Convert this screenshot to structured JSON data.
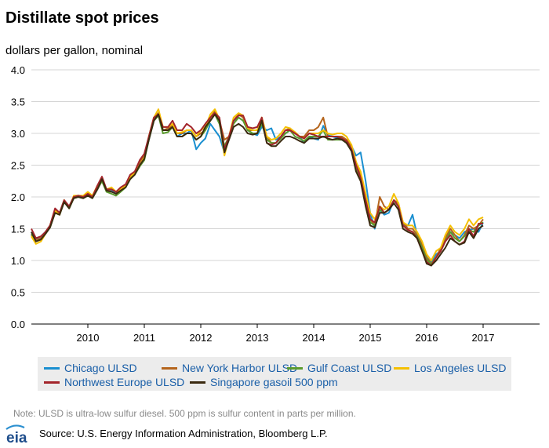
{
  "header": {
    "title": "Distillate spot prices",
    "unit_label": "dollars per gallon, nominal"
  },
  "footer": {
    "note": "Note: ULSD is ultra-low sulfur diesel. 500 ppm is sulfur content in parts per million.",
    "source": "Source: U.S. Energy Information Administration, Bloomberg L.P.",
    "logo_text": "eia"
  },
  "chart_data": {
    "type": "line",
    "title": "Distillate spot prices",
    "ylabel": "dollars per gallon, nominal",
    "xlabel": "",
    "xlim": [
      2009.0,
      2018.0
    ],
    "ylim": [
      0,
      4.0
    ],
    "x_ticks": [
      "2010",
      "2011",
      "2012",
      "2013",
      "2014",
      "2015",
      "2016",
      "2017"
    ],
    "y_ticks": [
      "0.0",
      "0.5",
      "1.0",
      "1.5",
      "2.0",
      "2.5",
      "3.0",
      "3.5",
      "4.0"
    ],
    "grid": "horizontal",
    "legend_position": "bottom",
    "x": [
      2009.0,
      2009.08,
      2009.17,
      2009.25,
      2009.33,
      2009.42,
      2009.5,
      2009.58,
      2009.67,
      2009.75,
      2009.83,
      2009.92,
      2010.0,
      2010.08,
      2010.17,
      2010.25,
      2010.33,
      2010.42,
      2010.5,
      2010.58,
      2010.67,
      2010.75,
      2010.83,
      2010.92,
      2011.0,
      2011.08,
      2011.17,
      2011.25,
      2011.33,
      2011.42,
      2011.5,
      2011.58,
      2011.67,
      2011.75,
      2011.83,
      2011.92,
      2012.0,
      2012.08,
      2012.17,
      2012.25,
      2012.33,
      2012.42,
      2012.5,
      2012.58,
      2012.67,
      2012.75,
      2012.83,
      2012.92,
      2013.0,
      2013.08,
      2013.17,
      2013.25,
      2013.33,
      2013.42,
      2013.5,
      2013.58,
      2013.67,
      2013.75,
      2013.83,
      2013.92,
      2014.0,
      2014.08,
      2014.17,
      2014.25,
      2014.33,
      2014.42,
      2014.5,
      2014.58,
      2014.67,
      2014.75,
      2014.83,
      2014.92,
      2015.0,
      2015.08,
      2015.17,
      2015.25,
      2015.33,
      2015.42,
      2015.5,
      2015.58,
      2015.67,
      2015.75,
      2015.83,
      2015.92,
      2016.0,
      2016.08,
      2016.17,
      2016.25,
      2016.33,
      2016.42,
      2016.5,
      2016.58,
      2016.67,
      2016.75,
      2016.83,
      2016.92,
      2017.0
    ],
    "series": [
      {
        "name": "Chicago ULSD",
        "color": "#1a8fd0",
        "values": [
          1.45,
          1.33,
          1.38,
          1.45,
          1.55,
          1.8,
          1.75,
          1.95,
          1.85,
          2.0,
          2.02,
          2.0,
          2.05,
          2.0,
          2.15,
          2.3,
          2.1,
          2.1,
          2.05,
          2.1,
          2.15,
          2.3,
          2.38,
          2.5,
          2.6,
          2.9,
          3.2,
          3.3,
          3.05,
          3.05,
          3.1,
          2.95,
          3.0,
          3.0,
          3.05,
          2.75,
          2.85,
          2.92,
          3.15,
          3.05,
          2.95,
          2.7,
          2.95,
          3.2,
          3.25,
          3.2,
          3.05,
          3.0,
          2.97,
          3.1,
          3.05,
          3.08,
          2.9,
          2.95,
          3.0,
          3.05,
          3.0,
          2.95,
          2.85,
          2.95,
          2.92,
          2.9,
          3.12,
          2.97,
          2.95,
          2.93,
          2.93,
          2.9,
          2.8,
          2.65,
          2.7,
          2.25,
          1.75,
          1.5,
          1.8,
          1.72,
          1.75,
          1.95,
          1.85,
          1.55,
          1.55,
          1.72,
          1.4,
          1.25,
          1.05,
          0.98,
          1.1,
          1.15,
          1.35,
          1.45,
          1.4,
          1.35,
          1.45,
          1.48,
          1.5,
          1.45,
          1.6
        ]
      },
      {
        "name": "New York Harbor ULSD",
        "color": "#b5651d",
        "values": [
          1.4,
          1.32,
          1.35,
          1.45,
          1.55,
          1.8,
          1.75,
          1.95,
          1.85,
          2.0,
          2.02,
          2.0,
          2.05,
          2.0,
          2.15,
          2.3,
          2.1,
          2.12,
          2.08,
          2.12,
          2.18,
          2.32,
          2.38,
          2.55,
          2.65,
          2.95,
          3.25,
          3.32,
          3.05,
          3.08,
          3.12,
          3.0,
          3.0,
          3.05,
          3.05,
          2.95,
          3.0,
          3.05,
          3.25,
          3.35,
          3.2,
          2.9,
          2.95,
          3.2,
          3.3,
          3.25,
          3.05,
          3.05,
          3.05,
          3.25,
          2.95,
          2.85,
          2.85,
          2.95,
          3.05,
          3.08,
          3.0,
          2.95,
          2.95,
          3.05,
          3.05,
          3.1,
          3.25,
          2.95,
          2.95,
          2.95,
          2.95,
          2.9,
          2.8,
          2.55,
          2.35,
          2.0,
          1.65,
          1.55,
          2.0,
          1.85,
          1.8,
          1.95,
          1.9,
          1.6,
          1.5,
          1.5,
          1.4,
          1.25,
          1.05,
          0.95,
          1.05,
          1.2,
          1.35,
          1.5,
          1.4,
          1.3,
          1.4,
          1.55,
          1.5,
          1.55,
          1.65
        ]
      },
      {
        "name": "Gulf Coast ULSD",
        "color": "#5a9b2d",
        "values": [
          1.42,
          1.3,
          1.33,
          1.42,
          1.52,
          1.75,
          1.72,
          1.92,
          1.82,
          1.98,
          2.0,
          1.98,
          2.02,
          1.98,
          2.12,
          2.25,
          2.08,
          2.05,
          2.02,
          2.08,
          2.15,
          2.28,
          2.35,
          2.48,
          2.58,
          2.9,
          3.2,
          3.28,
          3.0,
          3.02,
          3.1,
          2.95,
          2.95,
          3.0,
          3.0,
          2.9,
          2.95,
          3.05,
          3.2,
          3.3,
          3.15,
          2.8,
          2.95,
          3.15,
          3.25,
          3.2,
          3.05,
          3.0,
          3.0,
          3.15,
          2.9,
          2.85,
          2.85,
          2.92,
          3.0,
          3.05,
          2.95,
          2.92,
          2.88,
          2.95,
          2.95,
          2.95,
          3.05,
          2.9,
          2.9,
          2.9,
          2.9,
          2.85,
          2.75,
          2.45,
          2.3,
          1.9,
          1.6,
          1.55,
          1.8,
          1.75,
          1.8,
          1.95,
          1.85,
          1.55,
          1.48,
          1.45,
          1.38,
          1.2,
          1.02,
          0.94,
          1.05,
          1.15,
          1.3,
          1.45,
          1.35,
          1.3,
          1.38,
          1.48,
          1.45,
          1.55,
          1.6
        ]
      },
      {
        "name": "Los Angeles ULSD",
        "color": "#f5c000",
        "values": [
          1.38,
          1.26,
          1.3,
          1.42,
          1.55,
          1.78,
          1.72,
          1.95,
          1.82,
          2.02,
          2.02,
          2.02,
          2.08,
          2.02,
          2.18,
          2.28,
          2.12,
          2.15,
          2.08,
          2.12,
          2.18,
          2.32,
          2.38,
          2.5,
          2.62,
          2.95,
          3.25,
          3.38,
          3.1,
          3.1,
          3.15,
          3.0,
          3.02,
          3.05,
          3.05,
          2.95,
          3.05,
          3.1,
          3.3,
          3.38,
          3.22,
          2.65,
          2.95,
          3.25,
          3.32,
          3.28,
          3.08,
          3.05,
          3.05,
          3.25,
          2.95,
          2.9,
          2.92,
          3.0,
          3.1,
          3.08,
          3.02,
          2.95,
          2.92,
          3.0,
          3.0,
          3.0,
          3.05,
          3.0,
          2.98,
          3.0,
          3.0,
          2.95,
          2.82,
          2.55,
          2.4,
          2.05,
          1.75,
          1.65,
          1.85,
          1.8,
          1.85,
          2.05,
          1.9,
          1.6,
          1.55,
          1.55,
          1.45,
          1.3,
          1.1,
          1.0,
          1.15,
          1.2,
          1.4,
          1.55,
          1.45,
          1.4,
          1.5,
          1.65,
          1.55,
          1.65,
          1.68
        ]
      },
      {
        "name": "Northwest Europe ULSD",
        "color": "#a3252b",
        "values": [
          1.5,
          1.35,
          1.38,
          1.45,
          1.55,
          1.82,
          1.75,
          1.95,
          1.85,
          2.0,
          2.02,
          2.0,
          2.05,
          2.0,
          2.18,
          2.32,
          2.12,
          2.12,
          2.08,
          2.15,
          2.2,
          2.35,
          2.4,
          2.58,
          2.68,
          2.95,
          3.25,
          3.3,
          3.1,
          3.1,
          3.2,
          3.05,
          3.05,
          3.15,
          3.1,
          3.0,
          3.05,
          3.15,
          3.25,
          3.32,
          3.25,
          2.75,
          2.95,
          3.2,
          3.28,
          3.28,
          3.1,
          3.08,
          3.1,
          3.25,
          2.85,
          2.82,
          2.85,
          2.95,
          3.05,
          3.05,
          3.0,
          2.95,
          2.92,
          3.0,
          2.98,
          2.95,
          2.95,
          2.95,
          2.95,
          2.95,
          2.92,
          2.88,
          2.75,
          2.5,
          2.3,
          1.95,
          1.65,
          1.6,
          1.85,
          1.75,
          1.8,
          1.95,
          1.85,
          1.55,
          1.48,
          1.45,
          1.35,
          1.15,
          0.98,
          0.92,
          1.05,
          1.15,
          1.3,
          1.4,
          1.3,
          1.25,
          1.3,
          1.5,
          1.38,
          1.58,
          1.58
        ]
      },
      {
        "name": "Singapore gasoil 500 ppm",
        "color": "#3b2a10",
        "values": [
          1.45,
          1.3,
          1.33,
          1.42,
          1.52,
          1.75,
          1.72,
          1.92,
          1.82,
          1.98,
          2.0,
          1.98,
          2.02,
          1.98,
          2.12,
          2.28,
          2.1,
          2.08,
          2.05,
          2.1,
          2.15,
          2.28,
          2.35,
          2.5,
          2.6,
          2.9,
          3.2,
          3.3,
          3.05,
          3.05,
          3.1,
          2.95,
          2.95,
          3.0,
          3.0,
          2.9,
          2.95,
          3.1,
          3.2,
          3.3,
          3.2,
          2.7,
          2.9,
          3.1,
          3.15,
          3.1,
          3.0,
          2.98,
          3.0,
          3.2,
          2.85,
          2.8,
          2.8,
          2.88,
          2.95,
          2.95,
          2.92,
          2.88,
          2.85,
          2.92,
          2.92,
          2.92,
          2.95,
          2.92,
          2.9,
          2.92,
          2.9,
          2.85,
          2.72,
          2.4,
          2.25,
          1.85,
          1.55,
          1.52,
          1.75,
          1.75,
          1.8,
          1.9,
          1.8,
          1.5,
          1.45,
          1.42,
          1.35,
          1.15,
          0.95,
          0.92,
          1.0,
          1.1,
          1.2,
          1.35,
          1.3,
          1.25,
          1.28,
          1.45,
          1.35,
          1.5,
          1.55
        ]
      }
    ]
  }
}
